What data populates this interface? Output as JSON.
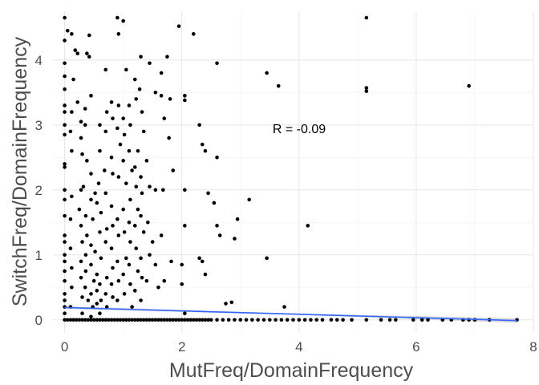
{
  "chart_data": {
    "type": "scatter",
    "title": "",
    "xlabel": "MutFreq/DomainFrequency",
    "ylabel": "SwitchFreq/DomainFrequency",
    "xlim": [
      -0.2,
      8.0
    ],
    "ylim": [
      -0.2,
      4.75
    ],
    "xticks": [
      0,
      2,
      4,
      6,
      8
    ],
    "yticks": [
      0,
      1,
      2,
      3,
      4
    ],
    "grid": true,
    "annotation": {
      "text": "R = -0.09",
      "x": 4.0,
      "y": 3.0
    },
    "point_color": "#000000",
    "trend": {
      "intercept": 0.19,
      "slope": -0.026,
      "x_range": [
        0,
        7.72
      ],
      "color": "#3366FF",
      "band_color": "#cccccc",
      "band_halfwidth": 0.035
    },
    "series": [
      {
        "points": [
          [
            0.0,
            4.65
          ],
          [
            0.05,
            4.45
          ],
          [
            0.0,
            4.3
          ],
          [
            0.18,
            4.15
          ],
          [
            0.0,
            3.95
          ],
          [
            0.0,
            3.75
          ],
          [
            0.0,
            3.55
          ],
          [
            0.0,
            3.3
          ],
          [
            0.0,
            3.2
          ],
          [
            0.0,
            3.0
          ],
          [
            0.0,
            2.85
          ],
          [
            0.0,
            2.4
          ],
          [
            0.0,
            2.35
          ],
          [
            0.0,
            2.0
          ],
          [
            0.0,
            1.85
          ],
          [
            0.0,
            1.6
          ],
          [
            0.0,
            1.3
          ],
          [
            0.0,
            1.2
          ],
          [
            0.0,
            1.0
          ],
          [
            0.0,
            0.9
          ],
          [
            0.0,
            0.75
          ],
          [
            0.0,
            0.6
          ],
          [
            0.0,
            0.4
          ],
          [
            0.0,
            0.3
          ],
          [
            0.0,
            0.2
          ],
          [
            0.0,
            0.1
          ],
          [
            0.0,
            0.0
          ],
          [
            0.12,
            4.4
          ],
          [
            0.15,
            3.7
          ],
          [
            0.12,
            3.2
          ],
          [
            0.1,
            2.9
          ],
          [
            0.12,
            2.6
          ],
          [
            0.12,
            1.9
          ],
          [
            0.1,
            1.55
          ],
          [
            0.1,
            1.1
          ],
          [
            0.12,
            0.8
          ],
          [
            0.12,
            0.5
          ],
          [
            0.1,
            0.2
          ],
          [
            0.22,
            4.1
          ],
          [
            0.22,
            3.35
          ],
          [
            0.28,
            3.05
          ],
          [
            0.28,
            2.8
          ],
          [
            0.3,
            2.55
          ],
          [
            0.28,
            2.0
          ],
          [
            0.25,
            1.7
          ],
          [
            0.28,
            1.45
          ],
          [
            0.3,
            1.2
          ],
          [
            0.28,
            0.9
          ],
          [
            0.28,
            0.65
          ],
          [
            0.3,
            0.35
          ],
          [
            0.3,
            0.1
          ],
          [
            0.35,
            3.25
          ],
          [
            0.35,
            3.0
          ],
          [
            0.38,
            2.45
          ],
          [
            0.32,
            2.05
          ],
          [
            0.36,
            1.6
          ],
          [
            0.38,
            1.3
          ],
          [
            0.36,
            1.0
          ],
          [
            0.36,
            0.75
          ],
          [
            0.35,
            0.5
          ],
          [
            0.4,
            0.3
          ],
          [
            0.42,
            4.38
          ],
          [
            0.38,
            4.1
          ],
          [
            0.42,
            4.05
          ],
          [
            0.45,
            3.45
          ],
          [
            0.45,
            2.25
          ],
          [
            0.45,
            1.85
          ],
          [
            0.48,
            1.55
          ],
          [
            0.45,
            1.15
          ],
          [
            0.45,
            0.85
          ],
          [
            0.5,
            0.6
          ],
          [
            0.45,
            0.4
          ],
          [
            0.48,
            0.2
          ],
          [
            0.45,
            0.05
          ],
          [
            0.52,
            1.95
          ],
          [
            0.55,
            1.8
          ],
          [
            0.52,
            1.05
          ],
          [
            0.55,
            0.7
          ],
          [
            0.55,
            0.45
          ],
          [
            0.55,
            0.25
          ],
          [
            0.6,
            3.0
          ],
          [
            0.6,
            2.6
          ],
          [
            0.58,
            2.1
          ],
          [
            0.62,
            1.65
          ],
          [
            0.6,
            1.35
          ],
          [
            0.62,
            0.95
          ],
          [
            0.6,
            0.55
          ],
          [
            0.62,
            0.3
          ],
          [
            0.6,
            0.1
          ],
          [
            0.7,
            3.85
          ],
          [
            0.72,
            3.2
          ],
          [
            0.7,
            2.9
          ],
          [
            0.68,
            2.3
          ],
          [
            0.7,
            1.95
          ],
          [
            0.72,
            1.4
          ],
          [
            0.7,
            1.2
          ],
          [
            0.72,
            0.65
          ],
          [
            0.7,
            0.4
          ],
          [
            0.72,
            0.2
          ],
          [
            0.8,
            3.35
          ],
          [
            0.82,
            3.1
          ],
          [
            0.8,
            2.5
          ],
          [
            0.82,
            2.25
          ],
          [
            0.8,
            1.75
          ],
          [
            0.82,
            1.45
          ],
          [
            0.8,
            1.1
          ],
          [
            0.82,
            0.8
          ],
          [
            0.8,
            0.55
          ],
          [
            0.82,
            0.35
          ],
          [
            0.9,
            4.65
          ],
          [
            0.92,
            4.4
          ],
          [
            0.92,
            3.3
          ],
          [
            0.9,
            2.95
          ],
          [
            0.95,
            2.7
          ],
          [
            0.92,
            2.2
          ],
          [
            0.9,
            1.55
          ],
          [
            0.92,
            1.3
          ],
          [
            0.9,
            0.9
          ],
          [
            0.92,
            0.6
          ],
          [
            0.9,
            0.3
          ],
          [
            1.0,
            4.6
          ],
          [
            1.05,
            3.85
          ],
          [
            1.0,
            3.1
          ],
          [
            1.02,
            2.85
          ],
          [
            1.0,
            2.45
          ],
          [
            1.05,
            2.1
          ],
          [
            1.0,
            1.7
          ],
          [
            1.02,
            1.35
          ],
          [
            1.05,
            0.95
          ],
          [
            1.0,
            0.7
          ],
          [
            1.02,
            0.4
          ],
          [
            1.1,
            3.3
          ],
          [
            1.12,
            3.0
          ],
          [
            1.1,
            2.6
          ],
          [
            1.15,
            2.3
          ],
          [
            1.12,
            1.85
          ],
          [
            1.1,
            1.5
          ],
          [
            1.12,
            1.2
          ],
          [
            1.1,
            0.85
          ],
          [
            1.12,
            0.55
          ],
          [
            1.15,
            0.2
          ],
          [
            1.2,
            3.7
          ],
          [
            1.22,
            3.4
          ],
          [
            1.25,
            2.6
          ],
          [
            1.2,
            2.35
          ],
          [
            1.22,
            2.05
          ],
          [
            1.25,
            1.7
          ],
          [
            1.2,
            1.45
          ],
          [
            1.22,
            1.1
          ],
          [
            1.25,
            0.75
          ],
          [
            1.2,
            0.45
          ],
          [
            1.3,
            4.05
          ],
          [
            1.28,
            3.55
          ],
          [
            1.32,
            3.2
          ],
          [
            1.35,
            2.9
          ],
          [
            1.3,
            2.2
          ],
          [
            1.32,
            1.95
          ],
          [
            1.3,
            1.6
          ],
          [
            1.35,
            1.35
          ],
          [
            1.3,
            0.95
          ],
          [
            1.32,
            0.65
          ],
          [
            1.3,
            0.3
          ],
          [
            1.45,
            3.95
          ],
          [
            1.4,
            2.45
          ],
          [
            1.45,
            2.05
          ],
          [
            1.42,
            1.5
          ],
          [
            1.45,
            1.0
          ],
          [
            1.4,
            0.6
          ],
          [
            1.55,
            3.5
          ],
          [
            1.55,
            2.0
          ],
          [
            1.5,
            1.2
          ],
          [
            1.55,
            0.85
          ],
          [
            1.6,
            0.5
          ],
          [
            1.65,
            3.8
          ],
          [
            1.65,
            3.45
          ],
          [
            1.7,
            3.1
          ],
          [
            1.68,
            2.0
          ],
          [
            1.65,
            1.3
          ],
          [
            1.7,
            0.6
          ],
          [
            1.75,
            4.05
          ],
          [
            1.8,
            3.4
          ],
          [
            1.78,
            2.8
          ],
          [
            1.85,
            2.3
          ],
          [
            1.82,
            0.9
          ],
          [
            1.95,
            4.52
          ],
          [
            2.05,
            3.45
          ],
          [
            2.05,
            3.38
          ],
          [
            2.05,
            2.0
          ],
          [
            2.05,
            1.45
          ],
          [
            2.0,
            0.85
          ],
          [
            2.0,
            0.55
          ],
          [
            2.05,
            0.1
          ],
          [
            2.2,
            4.4
          ],
          [
            2.3,
            3.0
          ],
          [
            2.35,
            2.7
          ],
          [
            2.4,
            2.6
          ],
          [
            2.3,
            0.95
          ],
          [
            2.35,
            0.9
          ],
          [
            2.4,
            0.7
          ],
          [
            2.45,
            1.95
          ],
          [
            2.55,
            1.8
          ],
          [
            2.6,
            3.95
          ],
          [
            2.6,
            2.5
          ],
          [
            2.6,
            1.45
          ],
          [
            2.65,
            1.3
          ],
          [
            2.75,
            0.25
          ],
          [
            2.85,
            0.27
          ],
          [
            2.9,
            1.25
          ],
          [
            2.95,
            1.55
          ],
          [
            3.15,
            1.85
          ],
          [
            3.45,
            3.8
          ],
          [
            3.65,
            3.6
          ],
          [
            3.45,
            0.95
          ],
          [
            3.75,
            0.2
          ],
          [
            4.15,
            1.45
          ],
          [
            5.15,
            4.65
          ],
          [
            5.15,
            3.57
          ],
          [
            5.15,
            3.52
          ],
          [
            6.9,
            3.6
          ],
          [
            0.05,
            0.0
          ],
          [
            0.1,
            0.0
          ],
          [
            0.15,
            0.0
          ],
          [
            0.2,
            0.0
          ],
          [
            0.25,
            0.0
          ],
          [
            0.3,
            0.0
          ],
          [
            0.35,
            0.0
          ],
          [
            0.4,
            0.0
          ],
          [
            0.45,
            0.0
          ],
          [
            0.5,
            0.0
          ],
          [
            0.55,
            0.0
          ],
          [
            0.6,
            0.0
          ],
          [
            0.65,
            0.0
          ],
          [
            0.7,
            0.0
          ],
          [
            0.75,
            0.0
          ],
          [
            0.8,
            0.0
          ],
          [
            0.85,
            0.0
          ],
          [
            0.9,
            0.0
          ],
          [
            0.95,
            0.0
          ],
          [
            1.0,
            0.0
          ],
          [
            1.05,
            0.0
          ],
          [
            1.1,
            0.0
          ],
          [
            1.15,
            0.0
          ],
          [
            1.2,
            0.0
          ],
          [
            1.25,
            0.0
          ],
          [
            1.3,
            0.0
          ],
          [
            1.35,
            0.0
          ],
          [
            1.4,
            0.0
          ],
          [
            1.45,
            0.0
          ],
          [
            1.5,
            0.0
          ],
          [
            1.55,
            0.0
          ],
          [
            1.6,
            0.0
          ],
          [
            1.65,
            0.0
          ],
          [
            1.7,
            0.0
          ],
          [
            1.75,
            0.0
          ],
          [
            1.8,
            0.0
          ],
          [
            1.85,
            0.0
          ],
          [
            1.9,
            0.0
          ],
          [
            1.95,
            0.0
          ],
          [
            2.0,
            0.0
          ],
          [
            2.05,
            0.0
          ],
          [
            2.1,
            0.0
          ],
          [
            2.15,
            0.0
          ],
          [
            2.2,
            0.0
          ],
          [
            2.25,
            0.0
          ],
          [
            2.3,
            0.0
          ],
          [
            2.35,
            0.0
          ],
          [
            2.4,
            0.0
          ],
          [
            2.45,
            0.0
          ],
          [
            2.5,
            0.0
          ],
          [
            2.6,
            0.0
          ],
          [
            2.7,
            0.0
          ],
          [
            2.8,
            0.0
          ],
          [
            2.9,
            0.0
          ],
          [
            3.0,
            0.0
          ],
          [
            3.1,
            0.0
          ],
          [
            3.2,
            0.0
          ],
          [
            3.3,
            0.0
          ],
          [
            3.4,
            0.0
          ],
          [
            3.5,
            0.0
          ],
          [
            3.6,
            0.0
          ],
          [
            3.7,
            0.0
          ],
          [
            3.8,
            0.0
          ],
          [
            3.9,
            0.0
          ],
          [
            4.0,
            0.0
          ],
          [
            4.1,
            0.0
          ],
          [
            4.2,
            0.0
          ],
          [
            4.3,
            0.0
          ],
          [
            4.4,
            0.0
          ],
          [
            4.55,
            0.0
          ],
          [
            4.65,
            0.0
          ],
          [
            4.75,
            0.0
          ],
          [
            4.9,
            0.0
          ],
          [
            5.15,
            0.0
          ],
          [
            5.4,
            0.0
          ],
          [
            5.55,
            0.0
          ],
          [
            5.65,
            0.0
          ],
          [
            5.95,
            0.0
          ],
          [
            6.1,
            0.0
          ],
          [
            6.2,
            0.0
          ],
          [
            6.45,
            0.0
          ],
          [
            6.6,
            0.0
          ],
          [
            6.8,
            0.0
          ],
          [
            6.9,
            0.0
          ],
          [
            7.0,
            0.0
          ],
          [
            7.25,
            0.0
          ],
          [
            7.72,
            0.0
          ]
        ]
      }
    ]
  }
}
